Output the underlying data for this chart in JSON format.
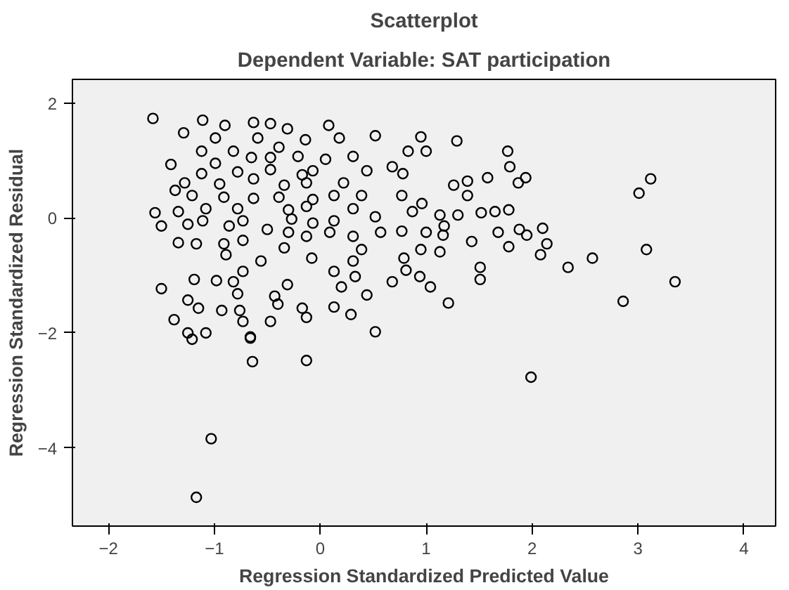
{
  "chart_data": {
    "type": "scatter",
    "title": "Scatterplot",
    "subtitle": "Dependent Variable: SAT participation",
    "xlabel": "Regression Standardized Predicted Value",
    "ylabel": "Regression Standardized Residual",
    "xlim": [
      -2.34,
      4.3
    ],
    "ylim": [
      -5.36,
      2.41
    ],
    "xticks": [
      -2,
      -1,
      0,
      1,
      2,
      3,
      4
    ],
    "yticks": [
      -4,
      -2,
      0,
      2
    ],
    "grid": false,
    "marker": "circle",
    "series": [
      {
        "color": "#000000",
        "x": [
          -1.58,
          -1.11,
          -0.9,
          -0.63,
          -0.47,
          -0.31,
          0.08,
          0.52,
          -1.29,
          -0.99,
          -0.59,
          -0.14,
          0.18,
          -0.39,
          -1.12,
          -0.82,
          -0.65,
          -0.47,
          -0.21,
          0.05,
          0.31,
          -1.41,
          -1.12,
          -0.99,
          -0.78,
          -0.47,
          -0.17,
          -0.07,
          0.22,
          0.44,
          0.68,
          -1.28,
          -0.95,
          -0.63,
          -0.34,
          -0.13,
          -1.37,
          -1.21,
          -0.91,
          -0.63,
          -0.39,
          -0.07,
          0.13,
          0.39,
          -1.08,
          -0.78,
          -0.3,
          -0.13,
          0.31,
          -1.56,
          -1.34,
          -1.11,
          -0.86,
          -0.73,
          -0.5,
          -0.27,
          -0.07,
          0.13,
          0.52,
          -1.5,
          -1.25,
          -0.3,
          -0.13,
          0.09,
          0.31,
          0.57,
          -0.91,
          -0.73,
          -1.34,
          -1.17,
          -0.34,
          -0.08,
          -0.56,
          -0.89,
          0.39,
          0.31,
          -0.73,
          0.13,
          0.33,
          -1.5,
          -1.19,
          -0.98,
          -0.82,
          -0.31,
          0.2,
          0.44,
          -0.78,
          -0.43,
          -1.25,
          -1.15,
          -0.93,
          -0.76,
          -0.17,
          0.13,
          0.29,
          -0.4,
          -1.38,
          -0.73,
          -0.47,
          -0.13,
          0.52,
          -1.25,
          -1.08,
          -0.66,
          0.95,
          1.29,
          0.83,
          1.0,
          1.77,
          0.78,
          1.79,
          1.58,
          1.87,
          1.94,
          1.26,
          1.39,
          1.39,
          0.77,
          0.96,
          3.12,
          3.01,
          0.87,
          1.13,
          1.3,
          1.52,
          1.65,
          1.78,
          1.17,
          0.77,
          1.0,
          1.16,
          1.68,
          1.88,
          2.1,
          1.95,
          1.43,
          0.95,
          1.13,
          1.78,
          2.14,
          2.08,
          3.08,
          0.79,
          2.57,
          2.34,
          1.51,
          1.51,
          0.81,
          0.94,
          1.04,
          0.68,
          3.35,
          2.86,
          1.21,
          -0.13,
          -0.64,
          -1.03,
          -1.17,
          -0.66,
          -1.21,
          1.99
        ],
        "values": [
          1.73,
          1.7,
          1.61,
          1.66,
          1.64,
          1.55,
          1.61,
          1.43,
          1.48,
          1.39,
          1.39,
          1.36,
          1.39,
          1.23,
          1.16,
          1.16,
          1.05,
          1.05,
          1.07,
          1.02,
          1.07,
          0.93,
          0.77,
          0.95,
          0.8,
          0.84,
          0.75,
          0.82,
          0.61,
          0.82,
          0.89,
          0.61,
          0.59,
          0.68,
          0.57,
          0.61,
          0.48,
          0.39,
          0.36,
          0.34,
          0.36,
          0.32,
          0.39,
          0.39,
          0.16,
          0.16,
          0.14,
          0.2,
          0.16,
          0.09,
          0.11,
          -0.05,
          -0.14,
          -0.05,
          -0.2,
          -0.02,
          -0.09,
          -0.05,
          0.02,
          -0.14,
          -0.11,
          -0.25,
          -0.32,
          -0.25,
          -0.32,
          -0.25,
          -0.45,
          -0.39,
          -0.43,
          -0.45,
          -0.52,
          -0.7,
          -0.75,
          -0.64,
          -0.55,
          -0.75,
          -0.93,
          -0.93,
          -1.02,
          -1.23,
          -1.07,
          -1.09,
          -1.11,
          -1.16,
          -1.2,
          -1.34,
          -1.32,
          -1.36,
          -1.43,
          -1.57,
          -1.61,
          -1.61,
          -1.57,
          -1.55,
          -1.68,
          -1.5,
          -1.77,
          -1.8,
          -1.8,
          -1.73,
          -1.98,
          -2.0,
          -2.0,
          -2.07,
          1.41,
          1.34,
          1.16,
          1.16,
          1.16,
          0.77,
          0.89,
          0.7,
          0.61,
          0.7,
          0.57,
          0.64,
          0.39,
          0.39,
          0.25,
          0.68,
          0.43,
          0.11,
          0.05,
          0.05,
          0.09,
          0.11,
          0.14,
          -0.14,
          -0.23,
          -0.25,
          -0.3,
          -0.25,
          -0.2,
          -0.18,
          -0.3,
          -0.41,
          -0.55,
          -0.59,
          -0.5,
          -0.45,
          -0.64,
          -0.55,
          -0.7,
          -0.7,
          -0.86,
          -0.86,
          -1.07,
          -0.91,
          -1.02,
          -1.2,
          -1.11,
          -1.11,
          -1.45,
          -1.48,
          -2.48,
          -2.5,
          -3.84,
          -4.86,
          -2.09,
          -2.11,
          -2.77
        ]
      }
    ]
  }
}
